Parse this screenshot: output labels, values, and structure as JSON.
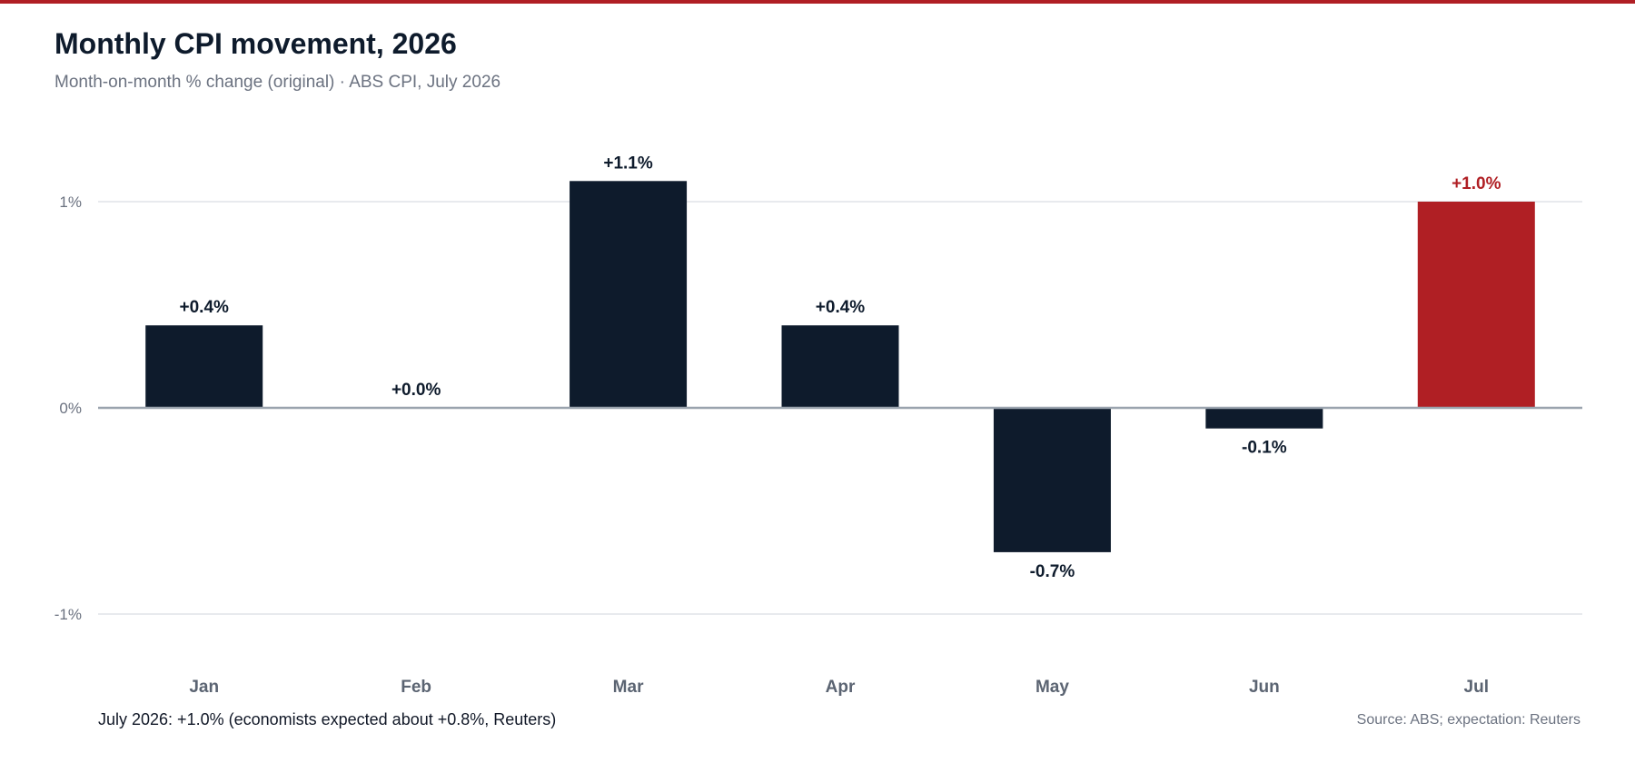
{
  "header": {
    "title": "Monthly CPI movement, 2026",
    "subtitle": "Month-on-month % change (original) · ABS CPI, July 2026"
  },
  "footer": {
    "note": "July 2026: +1.0% (economists expected about +0.8%, Reuters)",
    "source": "Source: ABS; expectation: Reuters"
  },
  "colors": {
    "accent": "#b01f24",
    "bar": "#0e1b2c",
    "highlight_bar": "#b01f24",
    "grid": "#d9dde3",
    "zero_line": "#9aa3ae",
    "axis_text": "#6b7280"
  },
  "chart_data": {
    "type": "bar",
    "title": "Monthly CPI movement, 2026",
    "subtitle": "Month-on-month % change (original) · ABS CPI, July 2026",
    "xlabel": "",
    "ylabel": "",
    "categories": [
      "Jan",
      "Feb",
      "Mar",
      "Apr",
      "May",
      "Jun",
      "Jul"
    ],
    "values": [
      0.4,
      0.0,
      1.1,
      0.4,
      -0.7,
      -0.1,
      1.0
    ],
    "value_labels": [
      "+0.4%",
      "+0.0%",
      "+1.1%",
      "+0.4%",
      "-0.7%",
      "-0.1%",
      "+1.0%"
    ],
    "highlight": "Jul",
    "ylim": [
      -1,
      1
    ],
    "yticks": [
      1,
      0,
      -1
    ],
    "ytick_labels": [
      "1%",
      "0%",
      "-1%"
    ],
    "grid": true,
    "legend": "none"
  }
}
